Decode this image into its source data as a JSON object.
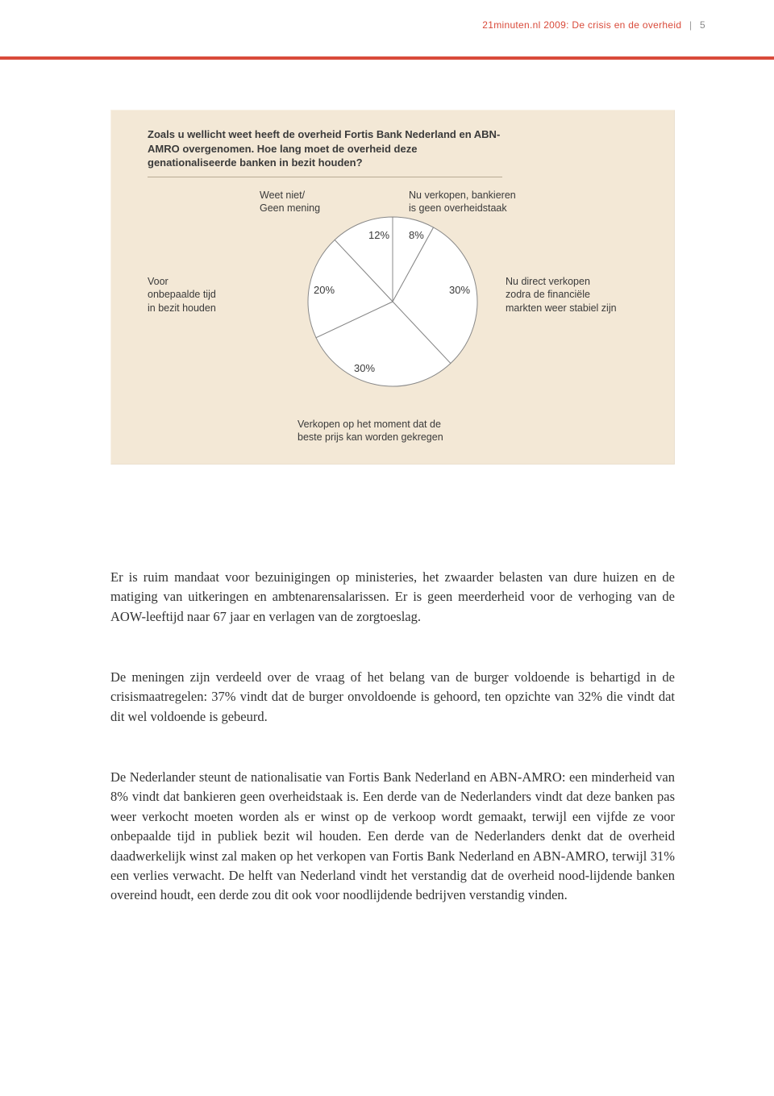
{
  "header": {
    "source": "21minuten.nl 2009: De crisis en de overheid",
    "page_number": "5",
    "color_source": "#d94a3a",
    "color_page": "#888888"
  },
  "red_bar_color": "#d94a3a",
  "chart": {
    "type": "pie",
    "background_color": "#f3e8d6",
    "title": "Zoals u wellicht weet heeft de overheid Fortis Bank Nederland en ABN-AMRO overgenomen. Hoe lang moet de overheid deze genationaliseerde banken in bezit houden?",
    "title_fontsize": 13,
    "title_weight": "bold",
    "slice_fill": "#ffffff",
    "slice_stroke": "#888888",
    "slice_stroke_width": 1,
    "radius": 105,
    "slices": [
      {
        "label": "Weet niet/\nGeen mening",
        "value": 12,
        "percent_label": "12%"
      },
      {
        "label": "Nu verkopen, bankieren\nis geen overheidstaak",
        "value": 8,
        "percent_label": "8%"
      },
      {
        "label": "Nu direct verkopen\nzodra de financiële\nmarkten weer stabiel zijn",
        "value": 30,
        "percent_label": "30%"
      },
      {
        "label": "Verkopen op het moment dat de\nbeste prijs kan worden gekregen",
        "value": 30,
        "percent_label": "30%"
      },
      {
        "label": "Voor\nonbepaalde tijd\nin bezit houden",
        "value": 20,
        "percent_label": "20%"
      }
    ],
    "labels": {
      "weet_niet_l1": "Weet niet/",
      "weet_niet_l2": "Geen mening",
      "nu_verkopen_l1": "Nu verkopen, bankieren",
      "nu_verkopen_l2": "is geen overheidstaak",
      "nu_direct_l1": "Nu direct verkopen",
      "nu_direct_l2": "zodra de financiële",
      "nu_direct_l3": "markten weer stabiel zijn",
      "verkopen_moment_l1": "Verkopen op het moment dat de",
      "verkopen_moment_l2": "beste prijs kan worden gekregen",
      "voor_l1": "Voor",
      "voor_l2": "onbepaalde tijd",
      "voor_l3": "in bezit houden",
      "pct_12": "12%",
      "pct_8": "8%",
      "pct_30a": "30%",
      "pct_30b": "30%",
      "pct_20": "20%"
    }
  },
  "body": {
    "p1": "Er is ruim mandaat voor bezuinigingen op ministeries, het zwaarder belasten van dure huizen en de matiging van uitkeringen en ambtenarensalarissen. Er is geen meerderheid voor de verhoging van de AOW-leeftijd naar 67 jaar en verlagen van de zorgtoeslag.",
    "p2": "De meningen zijn verdeeld over de vraag of het belang van de burger voldoende is behartigd in de crisismaatregelen: 37% vindt dat de burger onvoldoende is gehoord, ten opzichte van 32% die vindt dat dit wel voldoende is gebeurd.",
    "p3": "De Nederlander steunt de nationalisatie van Fortis Bank Nederland en ABN-AMRO: een minderheid van 8% vindt dat bankieren geen overheidstaak is. Een derde van de Nederlanders vindt dat deze banken pas weer verkocht moeten worden als er winst op de verkoop wordt gemaakt, terwijl een vijfde ze voor onbepaalde tijd in publiek bezit wil houden. Een derde van de Nederlanders denkt dat de overheid daadwerkelijk winst zal maken op het verkopen van Fortis Bank Nederland en ABN-AMRO, terwijl 31% een verlies verwacht. De helft van Nederland vindt het verstandig dat de overheid nood-lijdende banken overeind houdt, een derde zou dit ook voor noodlijdende bedrijven verstandig vinden."
  }
}
